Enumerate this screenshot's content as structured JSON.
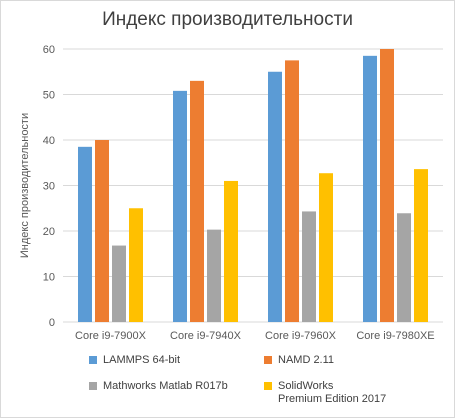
{
  "chart_data": {
    "type": "bar",
    "title": "Индекс производительности",
    "ylabel": "Индекс производительности",
    "xlabel": "",
    "ylim": [
      0,
      60
    ],
    "yticks": [
      0,
      10,
      20,
      30,
      40,
      50,
      60
    ],
    "categories": [
      "Core i9-7900X",
      "Core i9-7940X",
      "Core i9-7960X",
      "Core i9-7980XE"
    ],
    "series": [
      {
        "name": "LAMMPS 64-bit",
        "color": "#5b9bd5",
        "values": [
          38.5,
          50.8,
          55.0,
          58.5
        ]
      },
      {
        "name": "NAMD 2.11",
        "color": "#ed7d31",
        "values": [
          40.0,
          53.0,
          57.5,
          60.0
        ]
      },
      {
        "name": "Mathworks Matlab R017b",
        "color": "#a5a5a5",
        "values": [
          16.8,
          20.3,
          24.3,
          23.9
        ]
      },
      {
        "name": "SolidWorks\nPremium Edition 2017",
        "color": "#ffc000",
        "values": [
          25.0,
          31.0,
          32.7,
          33.6
        ]
      }
    ],
    "grid": true,
    "legend_position": "bottom"
  }
}
